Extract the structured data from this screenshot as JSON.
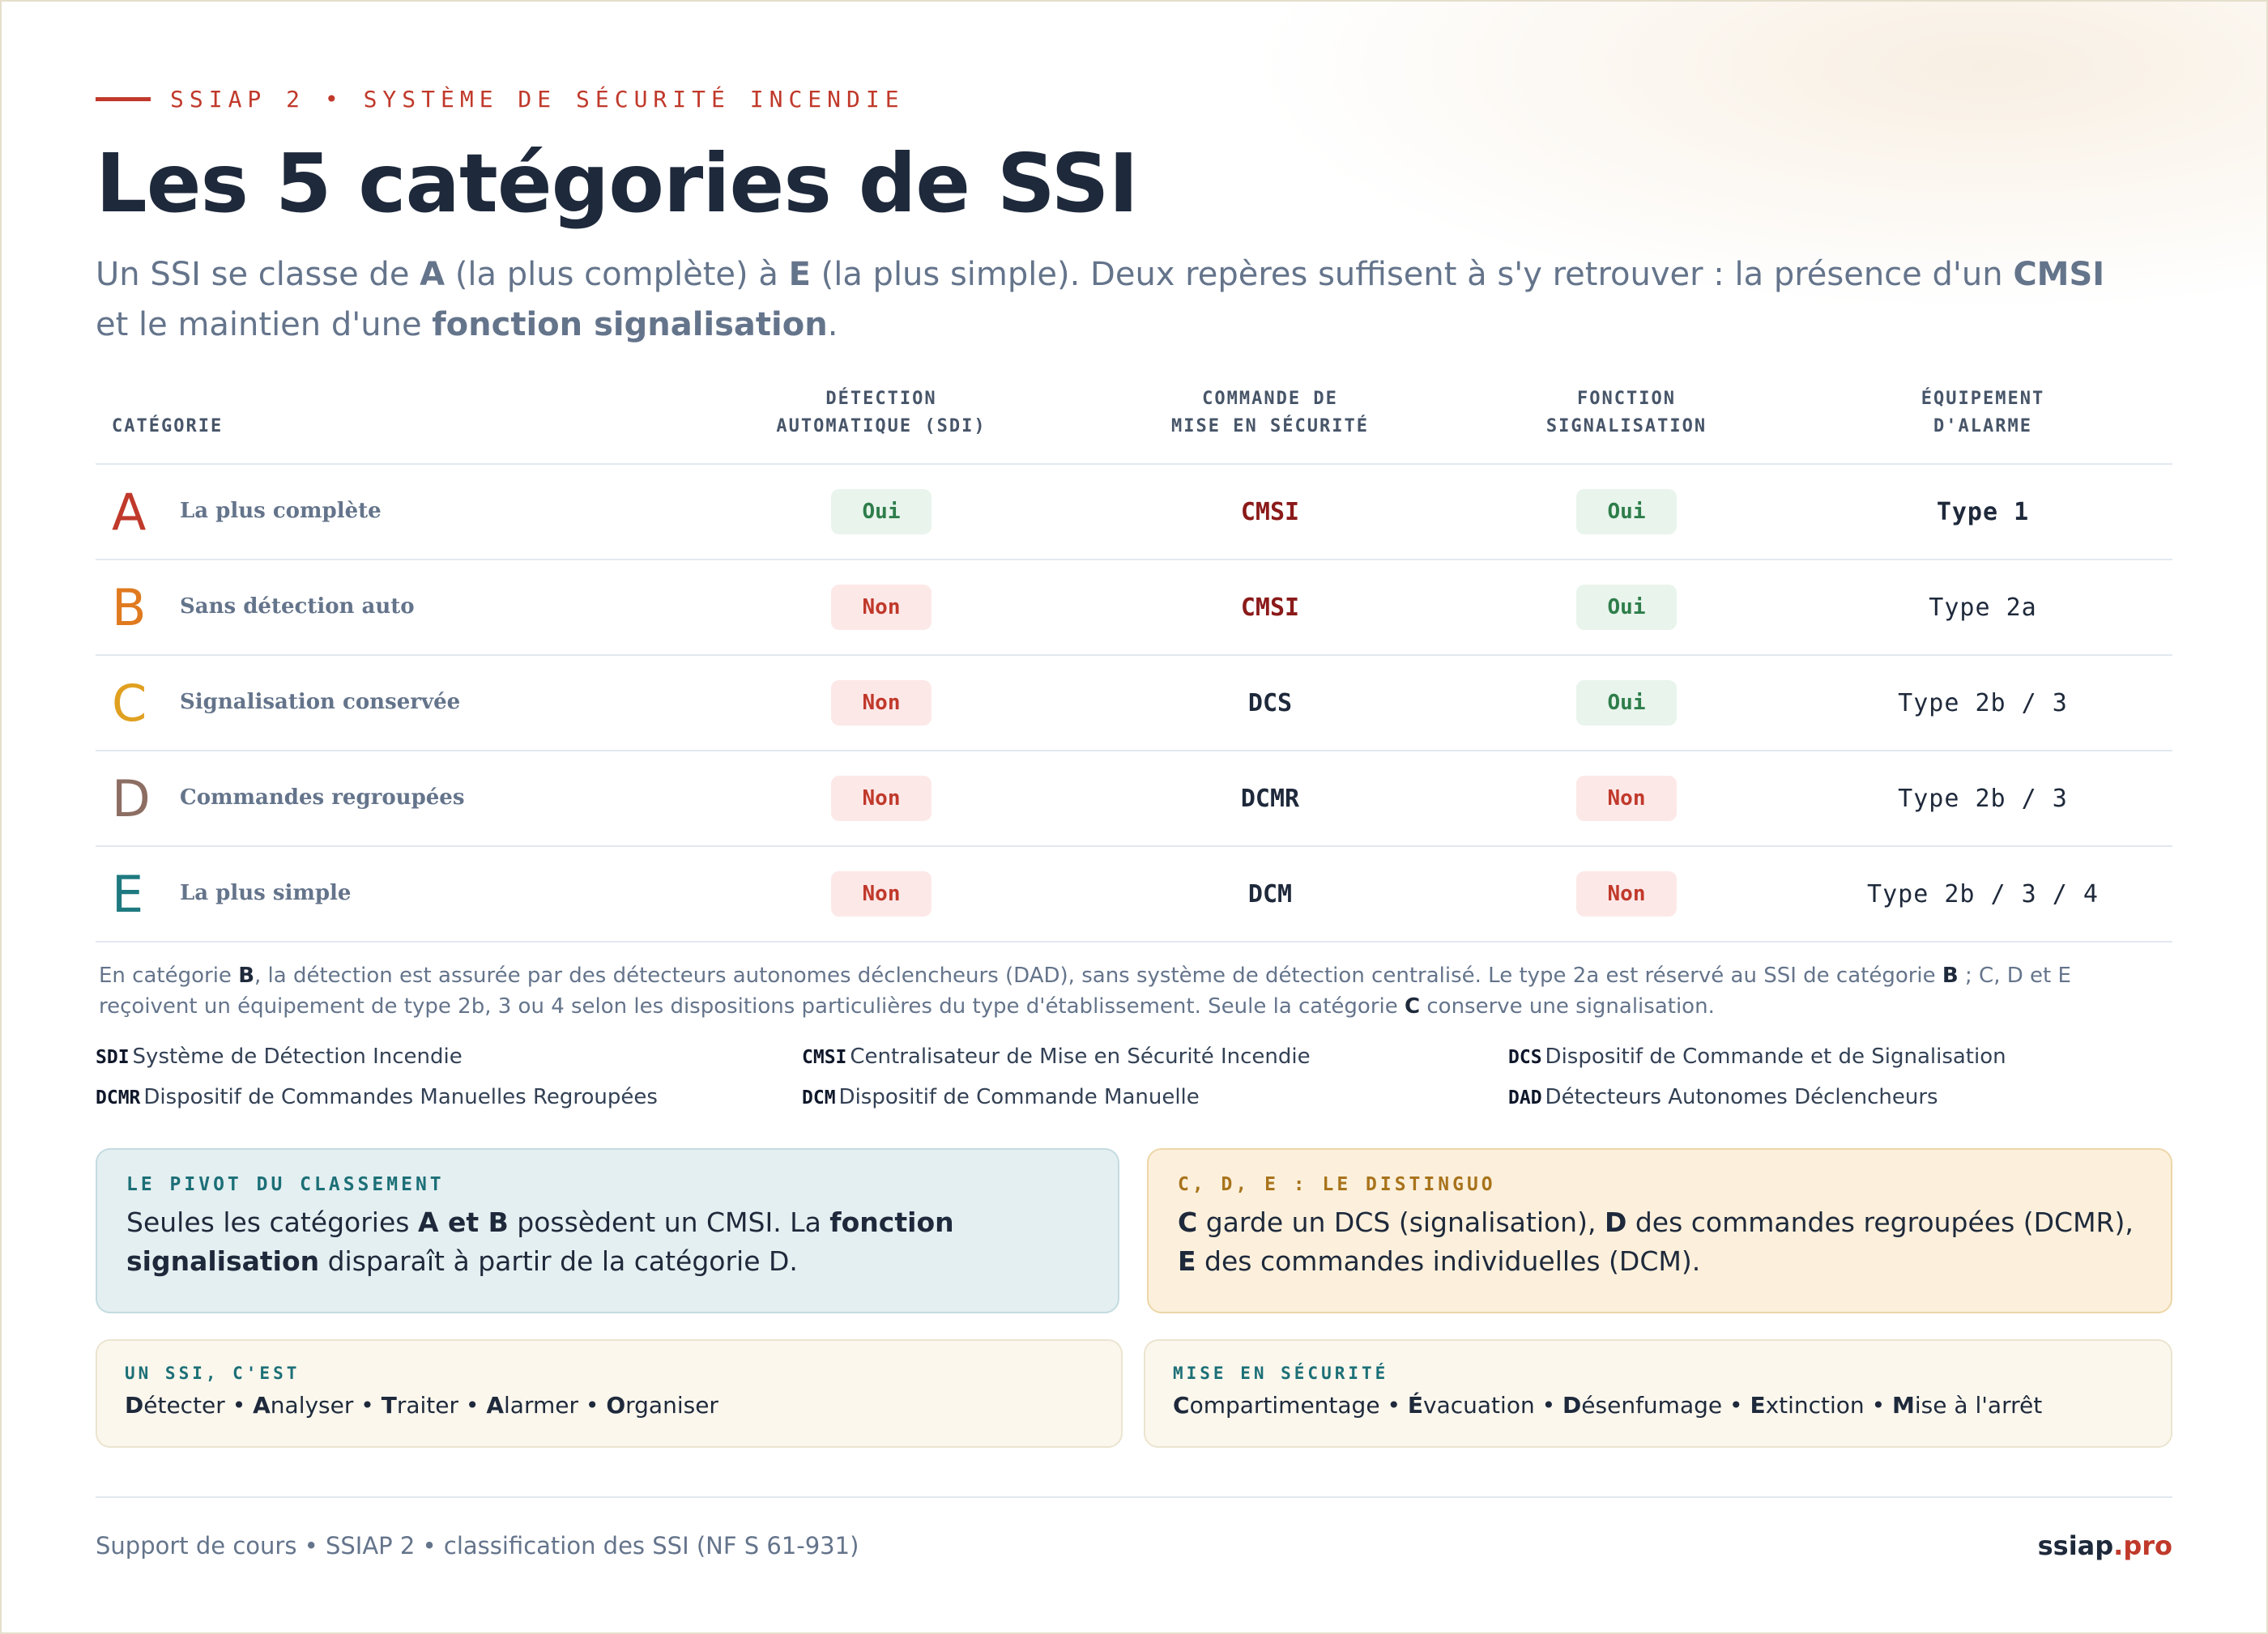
{
  "header": {
    "eyebrow": "SSIAP 2 • SYSTÈME DE SÉCURITÉ INCENDIE",
    "title": "Les 5 catégories de SSI",
    "lead_parts": [
      "Un SSI se classe de ",
      "A",
      " (la plus complète) à ",
      "E",
      " (la plus simple). Deux repères suffisent à s'y retrouver : la présence d'un ",
      "CMSI",
      " et le maintien d'une ",
      "fonction signalisation",
      "."
    ]
  },
  "table": {
    "headers": {
      "categorie": "CATÉGORIE",
      "detection_1": "DÉTECTION",
      "detection_2": "AUTOMATIQUE (SDI)",
      "commande_1": "COMMANDE DE",
      "commande_2": "MISE EN SÉCURITÉ",
      "signal_1": "FONCTION",
      "signal_2": "SIGNALISATION",
      "equip_1": "ÉQUIPEMENT",
      "equip_2": "D'ALARME"
    },
    "rows": [
      {
        "letter": "A",
        "color": "#c0392b",
        "label": "La plus complète",
        "detection": "Oui",
        "commande": "CMSI",
        "signal": "Oui",
        "equipement": "Type 1"
      },
      {
        "letter": "B",
        "color": "#e07a1f",
        "label": "Sans détection auto",
        "detection": "Non",
        "commande": "CMSI",
        "signal": "Oui",
        "equipement": "Type 2a"
      },
      {
        "letter": "C",
        "color": "#e0a020",
        "label": "Signalisation conservée",
        "detection": "Non",
        "commande": "DCS",
        "signal": "Oui",
        "equipement": "Type 2b / 3"
      },
      {
        "letter": "D",
        "color": "#8d6e63",
        "label": "Commandes regroupées",
        "detection": "Non",
        "commande": "DCMR",
        "signal": "Non",
        "equipement": "Type 2b / 3"
      },
      {
        "letter": "E",
        "color": "#1e7a80",
        "label": "La plus simple",
        "detection": "Non",
        "commande": "DCM",
        "signal": "Non",
        "equipement": "Type 2b / 3 / 4"
      }
    ]
  },
  "note_parts": [
    "En catégorie ",
    "B",
    ", la détection est assurée par des détecteurs autonomes déclencheurs (DAD), sans système de détection centralisé. Le type 2a est réservé au SSI de catégorie ",
    "B",
    " ; C, D et E reçoivent un équipement de type 2b, 3 ou 4 selon les dispositions particulières du type d'établissement. Seule la catégorie ",
    "C",
    " conserve une signalisation."
  ],
  "glossary": [
    {
      "abbr": "SDI",
      "text": "Système de Détection Incendie"
    },
    {
      "abbr": "CMSI",
      "text": "Centralisateur de Mise en Sécurité Incendie"
    },
    {
      "abbr": "DCS",
      "text": "Dispositif de Commande et de Signalisation"
    },
    {
      "abbr": "DCMR",
      "text": "Dispositif de Commandes Manuelles Regroupées"
    },
    {
      "abbr": "DCM",
      "text": "Dispositif de Commande Manuelle"
    },
    {
      "abbr": "DAD",
      "text": "Détecteurs Autonomes Déclencheurs"
    }
  ],
  "cards": {
    "pivot": {
      "title": "LE PIVOT DU CLASSEMENT",
      "parts": [
        "Seules les catégories ",
        "A et B",
        " possèdent un CMSI. La ",
        "fonction signalisation",
        " disparaît à partir de la catégorie D."
      ]
    },
    "distinguo": {
      "title": "C, D, E : LE DISTINGUO",
      "parts": [
        "C",
        " garde un DCS (signalisation), ",
        "D",
        " des commandes regroupées (DCMR), ",
        "E",
        " des commandes individuelles (DCM)."
      ]
    },
    "ssi": {
      "title": "UN SSI, C'EST",
      "items": [
        [
          "D",
          "étecter"
        ],
        [
          "A",
          "nalyser"
        ],
        [
          "T",
          "raiter"
        ],
        [
          "A",
          "larmer"
        ],
        [
          "O",
          "rganiser"
        ]
      ]
    },
    "mise": {
      "title": "MISE EN SÉCURITÉ",
      "items": [
        [
          "C",
          "ompartimentage"
        ],
        [
          "É",
          "vacuation"
        ],
        [
          "D",
          "ésenfumage"
        ],
        [
          "E",
          "xtinction"
        ],
        [
          "M",
          "ise à l'arrêt"
        ]
      ]
    },
    "separator": " • "
  },
  "footer": {
    "left": "Support de cours • SSIAP 2 • classification des SSI (NF S 61-931)",
    "brand_name": "ssiap",
    "brand_tld": ".pro"
  },
  "colors": {
    "accent": "#c0392b",
    "oui": "#2e7d4a",
    "non": "#c0392b",
    "teal": "#1c6f77",
    "amber": "#a8731c"
  }
}
